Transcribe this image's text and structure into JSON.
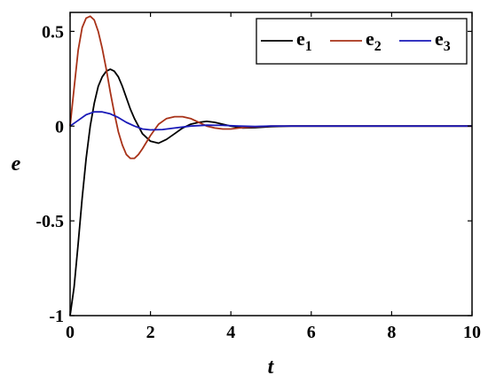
{
  "chart_data": {
    "type": "line",
    "title": "",
    "xlabel": "t",
    "ylabel": "e",
    "xlim": [
      0,
      10
    ],
    "ylim": [
      -1,
      0.6
    ],
    "xticks": [
      0,
      2,
      4,
      6,
      8,
      10
    ],
    "xtick_labels": [
      "0",
      "2",
      "4",
      "6",
      "8",
      "10"
    ],
    "yticks": [
      -1,
      -0.5,
      0,
      0.5
    ],
    "ytick_labels": [
      "-1",
      "-0.5",
      "0",
      "0.5"
    ],
    "grid": false,
    "legend_position": "top-right",
    "series": [
      {
        "name": "e",
        "subscript": "1",
        "color": "#000000",
        "x": [
          0,
          0.1,
          0.2,
          0.3,
          0.4,
          0.5,
          0.6,
          0.7,
          0.8,
          0.9,
          1.0,
          1.1,
          1.2,
          1.3,
          1.4,
          1.5,
          1.6,
          1.8,
          2.0,
          2.2,
          2.4,
          2.6,
          2.8,
          3.0,
          3.2,
          3.4,
          3.6,
          3.8,
          4.0,
          4.3,
          4.6,
          5.0,
          5.5,
          6.0,
          7.0,
          8.0,
          9.0,
          10.0
        ],
        "y": [
          -1,
          -0.85,
          -0.62,
          -0.38,
          -0.17,
          0.0,
          0.12,
          0.21,
          0.26,
          0.29,
          0.3,
          0.29,
          0.26,
          0.21,
          0.15,
          0.09,
          0.04,
          -0.04,
          -0.08,
          -0.09,
          -0.07,
          -0.04,
          -0.01,
          0.01,
          0.02,
          0.025,
          0.02,
          0.01,
          0.0,
          -0.01,
          -0.008,
          -0.003,
          0.0,
          0.0,
          0.0,
          0.0,
          0.0,
          0.0
        ]
      },
      {
        "name": "e",
        "subscript": "2",
        "color": "#a83218",
        "x": [
          0,
          0.1,
          0.2,
          0.3,
          0.4,
          0.5,
          0.6,
          0.7,
          0.8,
          0.9,
          1.0,
          1.1,
          1.2,
          1.3,
          1.4,
          1.5,
          1.6,
          1.7,
          1.8,
          2.0,
          2.2,
          2.4,
          2.6,
          2.8,
          3.0,
          3.2,
          3.4,
          3.6,
          3.8,
          4.0,
          4.2,
          4.5,
          5.0,
          5.5,
          6.0,
          7.0,
          8.0,
          9.0,
          10.0
        ],
        "y": [
          0,
          0.2,
          0.4,
          0.52,
          0.57,
          0.58,
          0.56,
          0.5,
          0.41,
          0.3,
          0.18,
          0.07,
          -0.03,
          -0.1,
          -0.15,
          -0.17,
          -0.17,
          -0.15,
          -0.12,
          -0.05,
          0.01,
          0.04,
          0.05,
          0.05,
          0.04,
          0.02,
          0.0,
          -0.01,
          -0.015,
          -0.015,
          -0.01,
          -0.005,
          0.0,
          0.0,
          0.0,
          0.0,
          0.0,
          0.0,
          0.0
        ]
      },
      {
        "name": "e",
        "subscript": "3",
        "color": "#1a1ab8",
        "x": [
          0,
          0.2,
          0.4,
          0.6,
          0.8,
          1.0,
          1.2,
          1.4,
          1.6,
          1.8,
          2.0,
          2.3,
          2.6,
          3.0,
          3.4,
          3.8,
          4.2,
          4.6,
          5.0,
          6.0,
          7.0,
          8.0,
          9.0,
          10.0
        ],
        "y": [
          0,
          0.03,
          0.06,
          0.075,
          0.075,
          0.065,
          0.045,
          0.02,
          0.0,
          -0.015,
          -0.02,
          -0.018,
          -0.01,
          0.0,
          0.005,
          0.004,
          0.0,
          -0.002,
          0.0,
          0.0,
          0.0,
          0.0,
          0.0,
          0.0
        ]
      }
    ]
  }
}
